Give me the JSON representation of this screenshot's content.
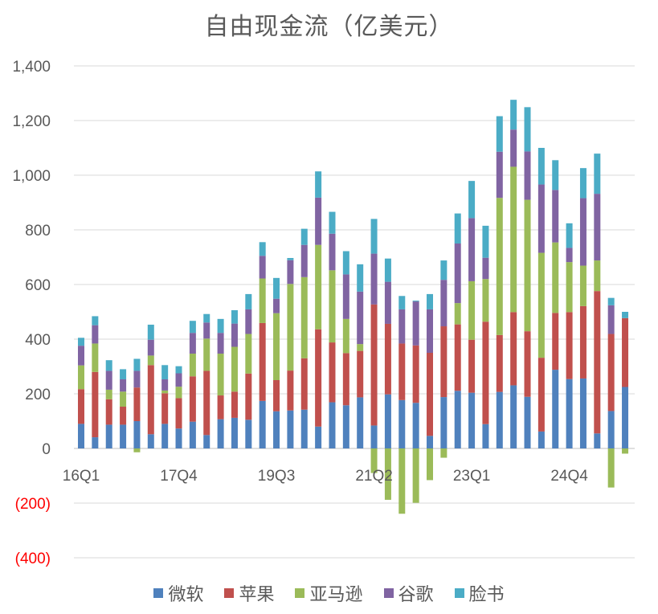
{
  "chart_data": {
    "type": "bar",
    "stacked": true,
    "title": "自由现金流（亿美元）",
    "xlabel": "",
    "ylabel": "",
    "ylim": [
      -400,
      1400
    ],
    "yticks": [
      {
        "value": 1400,
        "label": "1,400"
      },
      {
        "value": 1200,
        "label": "1,200"
      },
      {
        "value": 1000,
        "label": "1,000"
      },
      {
        "value": 800,
        "label": "800"
      },
      {
        "value": 600,
        "label": "600"
      },
      {
        "value": 400,
        "label": "400"
      },
      {
        "value": 200,
        "label": "200"
      },
      {
        "value": 0,
        "label": "0"
      },
      {
        "value": -200,
        "label": "(200)"
      },
      {
        "value": -400,
        "label": "(400)"
      }
    ],
    "bar_count": 40,
    "xtick_labels": [
      {
        "index": 0,
        "label": "16Q1"
      },
      {
        "index": 7,
        "label": "17Q4"
      },
      {
        "index": 14,
        "label": "19Q3"
      },
      {
        "index": 21,
        "label": "21Q2"
      },
      {
        "index": 28,
        "label": "23Q1"
      },
      {
        "index": 35,
        "label": "24Q4"
      }
    ],
    "grid": true,
    "legend_position": "bottom",
    "series": [
      {
        "name": "微软",
        "color": "#4f81bd",
        "values": [
          90,
          41,
          87,
          87,
          100,
          52,
          90,
          73,
          98,
          49,
          107,
          112,
          105,
          174,
          136,
          139,
          142,
          80,
          169,
          158,
          187,
          84,
          198,
          177,
          167,
          46,
          188,
          211,
          204,
          89,
          207,
          231,
          189,
          62,
          288,
          254,
          256,
          55,
          137,
          225
        ]
      },
      {
        "name": "苹果",
        "color": "#c0504d",
        "values": [
          127,
          239,
          93,
          66,
          123,
          253,
          112,
          111,
          166,
          235,
          87,
          96,
          169,
          285,
          114,
          146,
          188,
          356,
          219,
          191,
          170,
          443,
          258,
          207,
          210,
          304,
          259,
          243,
          194,
          375,
          208,
          268,
          240,
          270,
          208,
          245,
          265,
          521,
          282,
          252
        ]
      },
      {
        "name": "亚马逊",
        "color": "#9bbb59",
        "values": [
          87,
          104,
          35,
          55,
          -14,
          35,
          10,
          42,
          83,
          118,
          153,
          164,
          145,
          163,
          245,
          317,
          297,
          309,
          264,
          125,
          25,
          -90,
          -188,
          -239,
          -199,
          -116,
          -34,
          78,
          214,
          156,
          502,
          532,
          481,
          384,
          258,
          183,
          148,
          112,
          -143,
          -19
        ]
      },
      {
        "name": "谷歌",
        "color": "#8064a2",
        "values": [
          72,
          67,
          69,
          45,
          61,
          58,
          41,
          49,
          76,
          59,
          76,
          85,
          90,
          83,
          53,
          87,
          118,
          173,
          134,
          163,
          192,
          186,
          154,
          125,
          161,
          159,
          170,
          218,
          231,
          78,
          169,
          136,
          177,
          250,
          192,
          52,
          247,
          244,
          105,
          0
        ]
      },
      {
        "name": "脸书",
        "color": "#4bacc6",
        "values": [
          29,
          33,
          39,
          37,
          44,
          55,
          52,
          26,
          44,
          31,
          51,
          49,
          56,
          50,
          76,
          8,
          59,
          96,
          80,
          85,
          100,
          127,
          85,
          49,
          3,
          56,
          71,
          110,
          136,
          117,
          130,
          109,
          162,
          134,
          109,
          90,
          110,
          147,
          27,
          23
        ]
      }
    ]
  },
  "colors": {
    "axis_text": "#595959",
    "negative_label": "#ff0000",
    "gridline": "#d9d9d9"
  }
}
